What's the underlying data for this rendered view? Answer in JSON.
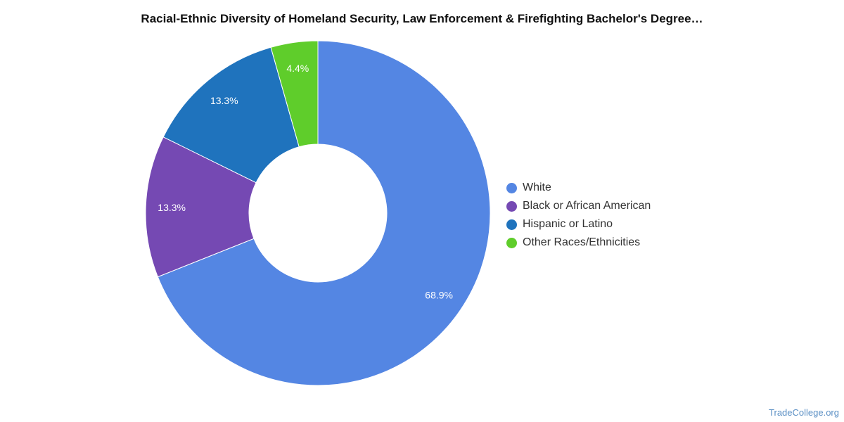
{
  "credit": "TradeCollege.org",
  "chart_data": {
    "type": "pie",
    "donut": true,
    "title": "Racial-Ethnic Diversity of Homeland Security, Law Enforcement & Firefighting Bachelor's Degree…",
    "legend_position": "right",
    "slices": [
      {
        "label": "White",
        "value": 68.9,
        "display": "68.9%",
        "color": "#5486e3"
      },
      {
        "label": "Black or African American",
        "value": 13.3,
        "display": "13.3%",
        "color": "#7549b3"
      },
      {
        "label": "Hispanic or Latino",
        "value": 13.3,
        "display": "13.3%",
        "color": "#1f73bd"
      },
      {
        "label": "Other Races/Ethnicities",
        "value": 4.4,
        "display": "4.4%",
        "color": "#5fcd2b"
      }
    ]
  }
}
